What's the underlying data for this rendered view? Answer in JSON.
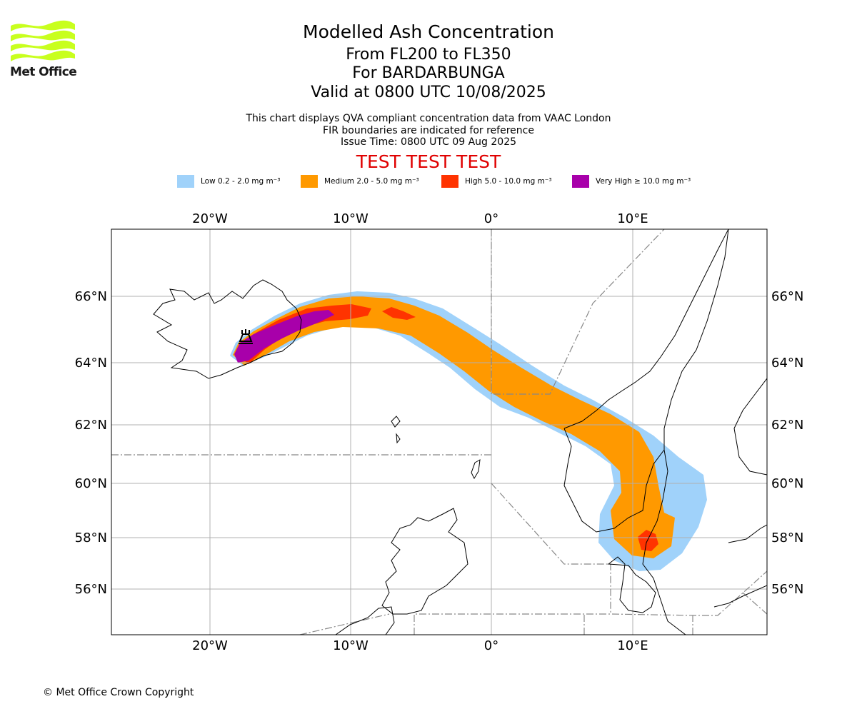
{
  "header": {
    "title": "Modelled Ash Concentration",
    "levels": "From FL200 to FL350",
    "volcano": "For BARDARBUNGA",
    "valid": "Valid at 0800 UTC 10/08/2025",
    "note1": "This chart displays QVA compliant concentration data from VAAC London",
    "note2": "FIR boundaries are indicated for reference",
    "issue": "Issue Time: 0800 UTC 09 Aug 2025",
    "test_banner": "TEST TEST TEST"
  },
  "logo": {
    "text": "Met Office",
    "color": "#c8ff1e"
  },
  "legend": [
    {
      "label": "Low 0.2 - 2.0 mg m⁻³",
      "color": "#a0d2fa"
    },
    {
      "label": "Medium 2.0 - 5.0 mg m⁻³",
      "color": "#ff9900"
    },
    {
      "label": "High 5.0 - 10.0 mg m⁻³",
      "color": "#ff3300"
    },
    {
      "label": "Very High ≥ 10.0 mg m⁻³",
      "color": "#a800aa"
    }
  ],
  "axes": {
    "lon_labels": [
      "20°W",
      "10°W",
      "0°",
      "10°E"
    ],
    "lat_labels": [
      "66°N",
      "64°N",
      "62°N",
      "60°N",
      "58°N",
      "56°N"
    ]
  },
  "footer": "© Met Office Crown Copyright"
}
